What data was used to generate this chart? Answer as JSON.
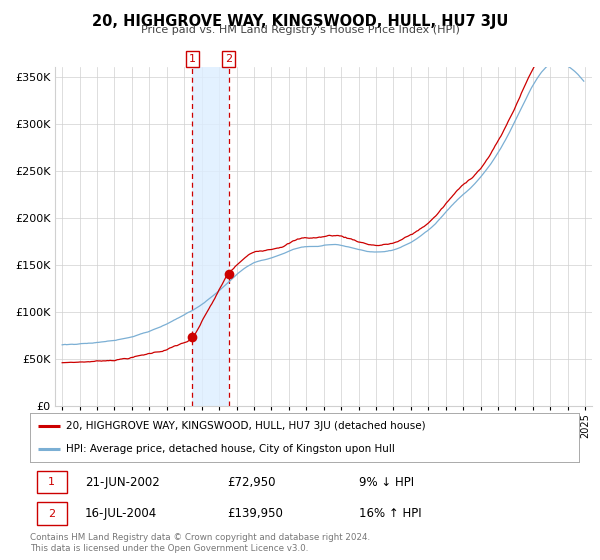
{
  "title": "20, HIGHGROVE WAY, KINGSWOOD, HULL, HU7 3JU",
  "subtitle": "Price paid vs. HM Land Registry's House Price Index (HPI)",
  "ylim": [
    0,
    360000
  ],
  "xlim_start": 1994.6,
  "xlim_end": 2025.4,
  "transaction_color": "#cc0000",
  "hpi_color": "#7bafd4",
  "sale1_date": 2002.47,
  "sale1_price": 72950,
  "sale2_date": 2004.54,
  "sale2_price": 139950,
  "legend_line1": "20, HIGHGROVE WAY, KINGSWOOD, HULL, HU7 3JU (detached house)",
  "legend_line2": "HPI: Average price, detached house, City of Kingston upon Hull",
  "table_row1": [
    "1",
    "21-JUN-2002",
    "£72,950",
    "9% ↓ HPI"
  ],
  "table_row2": [
    "2",
    "16-JUL-2004",
    "£139,950",
    "16% ↑ HPI"
  ],
  "footnote": "Contains HM Land Registry data © Crown copyright and database right 2024.\nThis data is licensed under the Open Government Licence v3.0.",
  "background_color": "#ffffff",
  "grid_color": "#d0d0d0",
  "shade_color": "#ddeeff",
  "hpi_monthly": [
    65000,
    65200,
    65400,
    65300,
    65500,
    65600,
    65800,
    65900,
    65700,
    65800,
    66000,
    66100,
    66300,
    66400,
    66500,
    66600,
    66700,
    66800,
    67000,
    67100,
    67200,
    67300,
    67500,
    67600,
    68000,
    68100,
    68300,
    68500,
    68700,
    68800,
    69000,
    69200,
    69500,
    69800,
    70100,
    70300,
    70500,
    70800,
    71200,
    71500,
    71900,
    72200,
    72600,
    73000,
    73400,
    73700,
    74100,
    74500,
    75000,
    75400,
    75900,
    76300,
    76800,
    77200,
    77700,
    78200,
    78700,
    79200,
    79700,
    80200,
    80800,
    81400,
    82000,
    82500,
    83100,
    83700,
    84300,
    84900,
    85500,
    86200,
    86900,
    87500,
    88200,
    88900,
    89600,
    90300,
    91100,
    92000,
    92800,
    93600,
    94400,
    95200,
    96000,
    96900,
    97700,
    98600,
    99500,
    100400,
    101300,
    102200,
    103100,
    104100,
    105100,
    106100,
    107100,
    108100,
    109200,
    110300,
    111400,
    112600,
    113700,
    114900,
    116100,
    117300,
    118500,
    119800,
    121100,
    122400,
    123700,
    125100,
    126500,
    127900,
    129300,
    130700,
    132100,
    133500,
    135000,
    136400,
    137800,
    139200,
    140600,
    142000,
    143300,
    144600,
    145900,
    147000,
    148100,
    149100,
    150100,
    151000,
    151900,
    152700,
    153400,
    154000,
    154500,
    155000,
    155400,
    155800,
    156200,
    156600,
    157000,
    157400,
    157800,
    158200,
    158700,
    159200,
    159700,
    160200,
    160700,
    161200,
    161800,
    162400,
    163000,
    163600,
    164300,
    165000,
    165700,
    166300,
    167000,
    167600,
    168100,
    168600,
    169000,
    169400,
    169700,
    170000,
    170200,
    170400,
    170500,
    170600,
    170600,
    170700,
    170700,
    170800,
    170900,
    171000,
    171100,
    171300,
    171500,
    171700,
    172000,
    172200,
    172400,
    172600,
    172800,
    173000,
    173100,
    173200,
    173200,
    173100,
    173000,
    172800,
    172500,
    172200,
    171800,
    171400,
    171000,
    170600,
    170200,
    169800,
    169400,
    169000,
    168600,
    168200,
    167800,
    167400,
    167000,
    166600,
    166200,
    165800,
    165500,
    165200,
    165000,
    164800,
    164700,
    164600,
    164500,
    164500,
    164500,
    164600,
    164700,
    164800,
    165000,
    165200,
    165400,
    165700,
    166000,
    166300,
    166700,
    167100,
    167600,
    168100,
    168700,
    169300,
    169900,
    170600,
    171300,
    172000,
    172700,
    173500,
    174300,
    175100,
    175900,
    176800,
    177700,
    178600,
    179600,
    180600,
    181700,
    182800,
    184000,
    185200,
    186500,
    187800,
    189100,
    190500,
    192000,
    193500,
    195100,
    196700,
    198300,
    200000,
    201700,
    203400,
    205100,
    206800,
    208500,
    210200,
    211900,
    213500,
    215100,
    216600,
    218100,
    219500,
    220900,
    222300,
    223600,
    225000,
    226300,
    227700,
    229100,
    230500,
    232000,
    233500,
    235100,
    236700,
    238400,
    240100,
    241900,
    243700,
    245600,
    247600,
    249600,
    251700,
    253900,
    256100,
    258400,
    260700,
    263100,
    265500,
    268000,
    270600,
    273200,
    275900,
    278700,
    281500,
    284400,
    287300,
    290300,
    293300,
    296400,
    299500,
    302700,
    305900,
    309100,
    312300,
    315500,
    318700,
    321900,
    325100,
    328200,
    331300,
    334300,
    337200,
    340000,
    342700,
    345300,
    347700,
    350000,
    352100,
    354100,
    355900,
    357600,
    359100,
    360400,
    361500,
    362400,
    363100,
    363600,
    364000,
    364200,
    364300,
    364200,
    364000,
    363700,
    363200,
    362600,
    361900,
    361000,
    360000,
    358900,
    357700,
    356400,
    355000,
    353500,
    352000,
    350400,
    348700,
    347000,
    345200,
    343400,
    341600,
    339700,
    337800,
    335900,
    334000,
    332100,
    330200,
    328300,
    326400,
    324500,
    322700
  ],
  "prop_monthly_scale1": 0.752,
  "prop_monthly_scale2": 1.014
}
